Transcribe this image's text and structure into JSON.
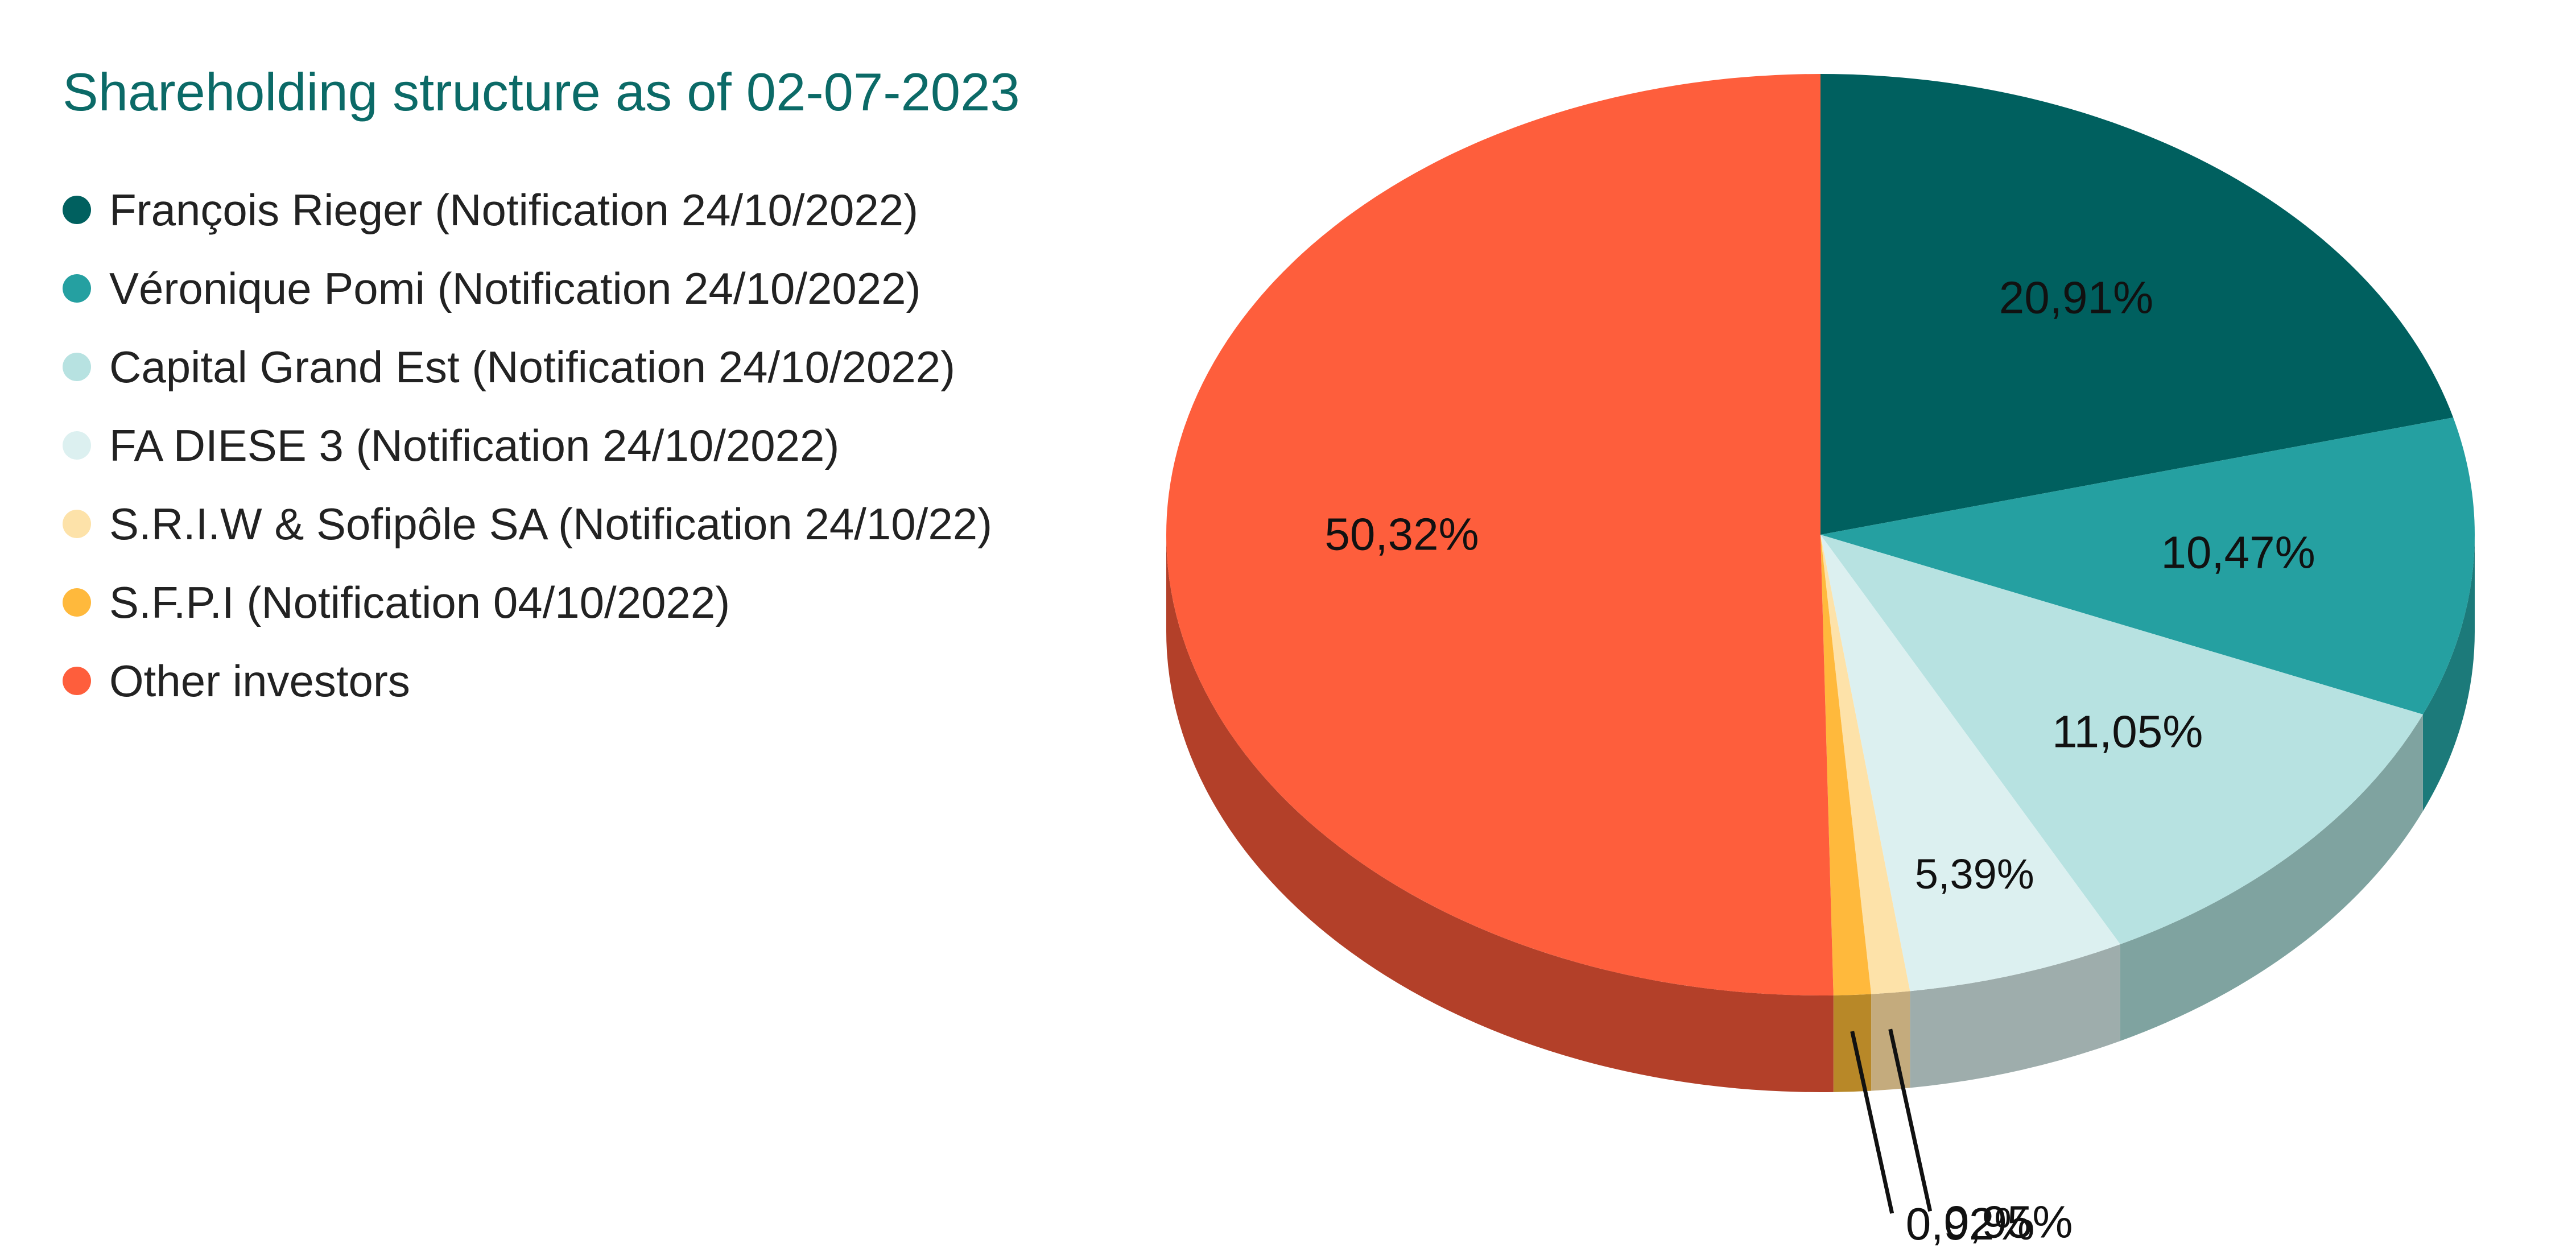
{
  "chart_data": {
    "type": "pie",
    "title": "Shareholding structure as of 02-07-2023",
    "series": [
      {
        "name": "François Rieger (Notification 24/10/2022)",
        "value": 20.91,
        "label": "20,91%",
        "color": "#00605f",
        "side_color": "#006261"
      },
      {
        "name": "Véronique Pomi (Notification 24/10/2022)",
        "value": 10.47,
        "label": "10,47%",
        "color": "#25a0a1",
        "side_color": "#1c7a7a"
      },
      {
        "name": "Capital Grand Est (Notification 24/10/2022)",
        "value": 11.05,
        "label": "11,05%",
        "color": "#b7e2e1",
        "side_color": "#7fa3a0"
      },
      {
        "name": "FA DIESE 3 (Notification 24/10/2022)",
        "value": 5.39,
        "label": "5,39%",
        "color": "#dcf0f0",
        "side_color": "#9eadac"
      },
      {
        "name": "S.R.I.W & Sofipôle SA (Notification 24/10/22)",
        "value": 0.95,
        "label": "0,95%",
        "color": "#fde2a9",
        "side_color": "#c4ab7d"
      },
      {
        "name": "S.F.P.I (Notification 04/10/2022)",
        "value": 0.92,
        "label": "0,92%",
        "color": "#ffb93c",
        "side_color": "#b88828"
      },
      {
        "name": "Other investors",
        "value": 50.32,
        "label": "50,32%",
        "color": "#fe5e3c",
        "side_color": "#b34029"
      }
    ],
    "start": "top",
    "direction": "clockwise",
    "style": "3d-tilted",
    "legend_position": "left"
  }
}
